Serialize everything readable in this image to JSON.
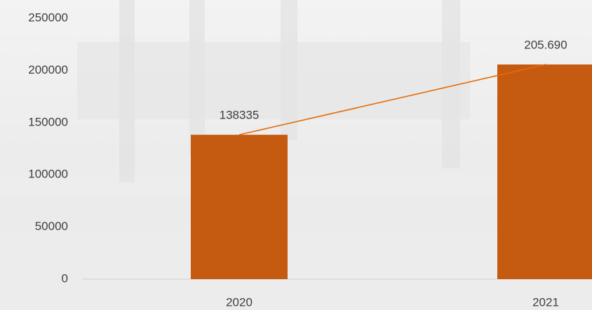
{
  "chart_data": {
    "type": "bar",
    "categories": [
      "2020",
      "2021"
    ],
    "values": [
      138335,
      205690
    ],
    "value_labels": [
      "138335",
      "205.690"
    ],
    "color": "#c55a11",
    "line_color": "#e46c0a",
    "ylim": [
      0,
      250000
    ],
    "yticks": [
      0,
      50000,
      100000,
      150000,
      200000,
      250000
    ]
  }
}
